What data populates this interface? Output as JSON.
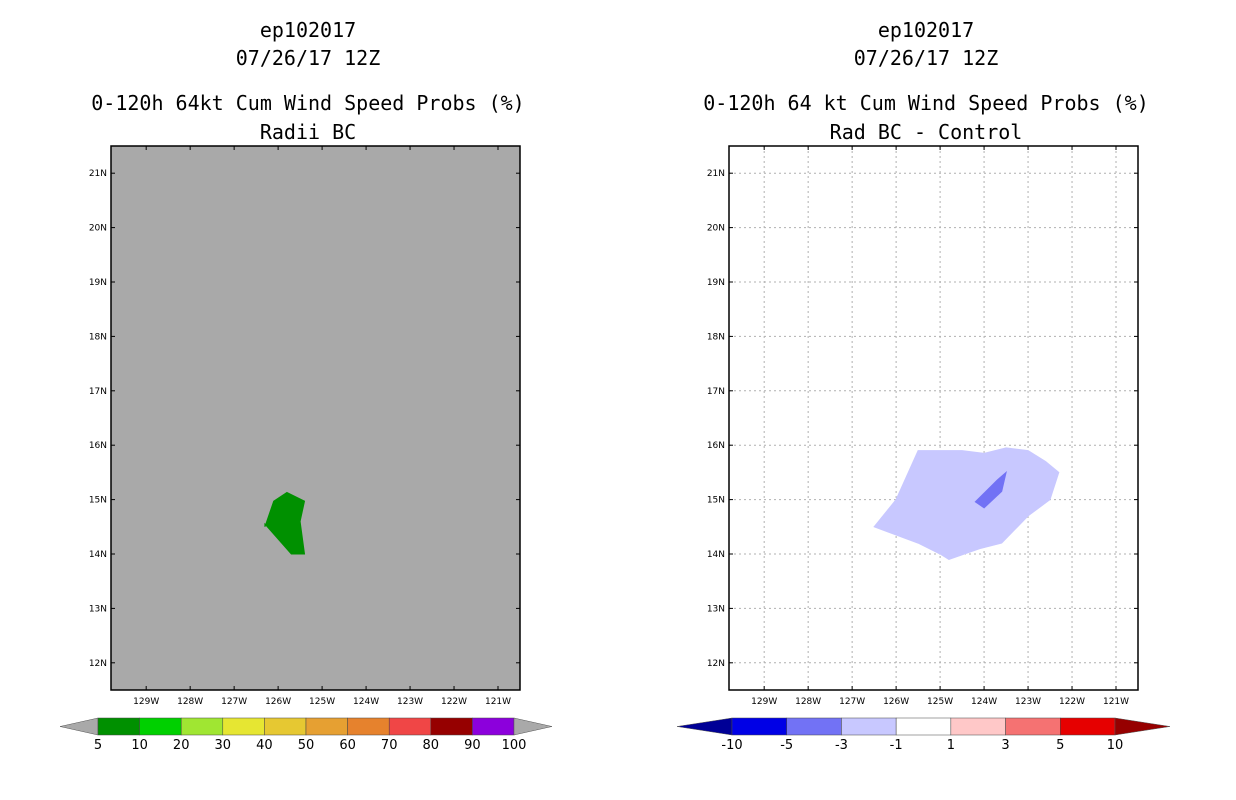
{
  "chart_data": [
    {
      "type": "map",
      "title_lines": [
        "ep102017",
        "07/26/17 12Z",
        "0-120h 64kt Cum Wind Speed Probs (%)",
        "Radii BC"
      ],
      "lon_ticks": [
        "129W",
        "128W",
        "127W",
        "126W",
        "125W",
        "124W",
        "123W",
        "122W",
        "121W"
      ],
      "lat_ticks": [
        "21N",
        "20N",
        "19N",
        "18N",
        "17N",
        "16N",
        "15N",
        "14N",
        "13N",
        "12N"
      ],
      "lon_range": [
        -129.8,
        -120.5
      ],
      "lat_range": [
        11.5,
        21.5
      ],
      "background_color": "#a9a9a9",
      "grid": false,
      "contours": [
        {
          "level": "5-10",
          "color": "#009000",
          "lon": [
            -126.3,
            -126.1,
            -125.8,
            -125.4,
            -125.5,
            -125.4,
            -125.7,
            -126.3
          ],
          "lat": [
            14.5,
            14.97,
            15.13,
            14.97,
            14.6,
            14.0,
            14.0,
            14.55
          ]
        }
      ],
      "colorbar": {
        "labels": [
          "5",
          "10",
          "20",
          "30",
          "40",
          "50",
          "60",
          "70",
          "80",
          "90",
          "100"
        ],
        "colors": [
          "#009000",
          "#00d000",
          "#a0e632",
          "#e6e632",
          "#e6c832",
          "#e6a032",
          "#e6822d",
          "#f04646",
          "#960000",
          "#8c00dc"
        ],
        "under_color": "#a9a9a9",
        "over_color": "#a9a9a9"
      }
    },
    {
      "type": "map",
      "title_lines": [
        "ep102017",
        "07/26/17 12Z",
        "0-120h 64 kt Cum Wind Speed Probs (%)",
        "Rad BC - Control"
      ],
      "lon_ticks": [
        "129W",
        "128W",
        "127W",
        "126W",
        "125W",
        "124W",
        "123W",
        "122W",
        "121W"
      ],
      "lat_ticks": [
        "21N",
        "20N",
        "19N",
        "18N",
        "17N",
        "16N",
        "15N",
        "14N",
        "13N",
        "12N"
      ],
      "lon_range": [
        -129.8,
        -120.5
      ],
      "lat_range": [
        11.5,
        21.5
      ],
      "background_color": "#ffffff",
      "grid": true,
      "contours": [
        {
          "level": "-3 to -1",
          "color": "#c8c8ff",
          "lon": [
            -126.5,
            -126.0,
            -125.5,
            -124.5,
            -124.0,
            -123.5,
            -123.0,
            -122.6,
            -122.3,
            -122.5,
            -123.0,
            -123.6,
            -124.1,
            -124.8,
            -125.0,
            -125.5,
            -126.5
          ],
          "lat": [
            14.5,
            15.0,
            15.9,
            15.9,
            15.85,
            15.95,
            15.9,
            15.7,
            15.5,
            15.0,
            14.7,
            14.2,
            14.1,
            13.9,
            14.0,
            14.2,
            14.5
          ]
        },
        {
          "level": "-5 to -3",
          "color": "#7272f5",
          "lon": [
            -124.2,
            -123.7,
            -123.5,
            -123.6,
            -124.0,
            -124.2
          ],
          "lat": [
            14.96,
            15.36,
            15.5,
            15.15,
            14.85,
            14.96
          ]
        }
      ],
      "colorbar": {
        "labels": [
          "-10",
          "-5",
          "-3",
          "-1",
          "1",
          "3",
          "5",
          "10"
        ],
        "colors": [
          "#0000e6",
          "#7272f5",
          "#c8c8ff",
          "#ffffff",
          "#ffc8c8",
          "#f57272",
          "#e60000"
        ],
        "under_color": "#000096",
        "over_color": "#960000"
      }
    }
  ]
}
